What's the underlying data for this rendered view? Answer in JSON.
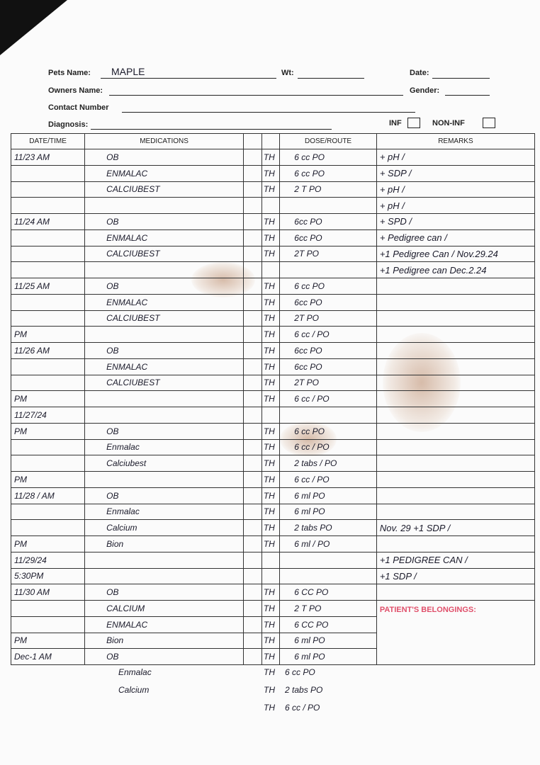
{
  "form": {
    "pets_name_label": "Pets Name:",
    "pets_name_value": "MAPLE",
    "wt_label": "Wt:",
    "date_label": "Date:",
    "owners_name_label": "Owners Name:",
    "gender_label": "Gender:",
    "contact_label": "Contact Number",
    "diagnosis_label": "Diagnosis:",
    "inf_label": "INF",
    "noninf_label": "NON-INF"
  },
  "table": {
    "headers": [
      "DATE/TIME",
      "MEDICATIONS",
      "",
      "",
      "DOSE/ROUTE",
      "REMARKS"
    ],
    "belongings_label": "PATIENT'S BELONGINGS:",
    "rows": [
      {
        "date": "11/23 AM",
        "med": "OB",
        "th": "TH",
        "dose": "6 cc PO",
        "remark": "+ pH /"
      },
      {
        "date": "",
        "med": "ENMALAC",
        "th": "TH",
        "dose": "6 cc PO",
        "remark": "+ SDP /"
      },
      {
        "date": "",
        "med": "CALCIUBEST",
        "th": "TH",
        "dose": "2 T PO",
        "remark": "+ pH /"
      },
      {
        "date": "",
        "med": "",
        "th": "",
        "dose": "",
        "remark": "+ pH /"
      },
      {
        "date": "11/24 AM",
        "med": "OB",
        "th": "TH",
        "dose": "6cc PO",
        "remark": "+ SPD /"
      },
      {
        "date": "",
        "med": "ENMALAC",
        "th": "TH",
        "dose": "6cc PO",
        "remark": "+ Pedigree can /"
      },
      {
        "date": "",
        "med": "CALCIUBEST",
        "th": "TH",
        "dose": "2T PO",
        "remark": "+1 Pedigree Can / Nov.29.24"
      },
      {
        "date": "",
        "med": "",
        "th": "",
        "dose": "",
        "remark": "+1 Pedigree can Dec.2.24"
      },
      {
        "date": "11/25 AM",
        "med": "OB",
        "th": "TH",
        "dose": "6 cc PO",
        "remark": ""
      },
      {
        "date": "",
        "med": "ENMALAC",
        "th": "TH",
        "dose": "6cc PO",
        "remark": ""
      },
      {
        "date": "",
        "med": "CALCIUBEST",
        "th": "TH",
        "dose": "2T PO",
        "remark": ""
      },
      {
        "date": "PM",
        "med": "",
        "th": "TH",
        "dose": "6 cc / PO",
        "remark": ""
      },
      {
        "date": "11/26 AM",
        "med": "OB",
        "th": "TH",
        "dose": "6cc PO",
        "remark": ""
      },
      {
        "date": "",
        "med": "ENMALAC",
        "th": "TH",
        "dose": "6cc PO",
        "remark": ""
      },
      {
        "date": "",
        "med": "CALCIUBEST",
        "th": "TH",
        "dose": "2T PO",
        "remark": ""
      },
      {
        "date": "PM",
        "med": "",
        "th": "TH",
        "dose": "6 cc / PO",
        "remark": ""
      },
      {
        "date": "11/27/24",
        "med": "",
        "th": "",
        "dose": "",
        "remark": ""
      },
      {
        "date": "PM",
        "med": "OB",
        "th": "TH",
        "dose": "6 cc PO",
        "remark": ""
      },
      {
        "date": "",
        "med": "Enmalac",
        "th": "TH",
        "dose": "6 cc / PO",
        "remark": ""
      },
      {
        "date": "",
        "med": "Calciubest",
        "th": "TH",
        "dose": "2 tabs / PO",
        "remark": ""
      },
      {
        "date": "PM",
        "med": "",
        "th": "TH",
        "dose": "6 cc / PO",
        "remark": ""
      },
      {
        "date": "11/28 / AM",
        "med": "OB",
        "th": "TH",
        "dose": "6 ml PO",
        "remark": ""
      },
      {
        "date": "",
        "med": "Enmalac",
        "th": "TH",
        "dose": "6 ml PO",
        "remark": ""
      },
      {
        "date": "",
        "med": "Calcium",
        "th": "TH",
        "dose": "2 tabs PO",
        "remark": "Nov. 29 +1 SDP /"
      },
      {
        "date": "PM",
        "med": "Bion",
        "th": "TH",
        "dose": "6 ml / PO",
        "remark": ""
      },
      {
        "date": "11/29/24",
        "med": "",
        "th": "",
        "dose": "",
        "remark": "+1 PEDIGREE CAN /"
      },
      {
        "date": "5:30PM",
        "med": "",
        "th": "",
        "dose": "",
        "remark": "+1 SDP /"
      },
      {
        "date": "11/30 AM",
        "med": "OB",
        "th": "TH",
        "dose": "6 CC PO",
        "remark": ""
      },
      {
        "date": "",
        "med": "CALCIUM",
        "th": "TH",
        "dose": "2 T PO",
        "remark": ""
      },
      {
        "date": "",
        "med": "ENMALAC",
        "th": "TH",
        "dose": "6 CC PO",
        "remark": ""
      },
      {
        "date": "PM",
        "med": "Bion",
        "th": "TH",
        "dose": "6 ml PO",
        "remark": ""
      },
      {
        "date": "Dec-1 AM",
        "med": "OB",
        "th": "TH",
        "dose": "6 ml PO",
        "remark": ""
      }
    ]
  },
  "below_table": [
    {
      "med": "Enmalac",
      "th": "TH",
      "dose": "6 cc PO"
    },
    {
      "med": "Calcium",
      "th": "TH",
      "dose": "2 tabs PO"
    },
    {
      "med": "",
      "th": "TH",
      "dose": "6 cc / PO"
    }
  ]
}
